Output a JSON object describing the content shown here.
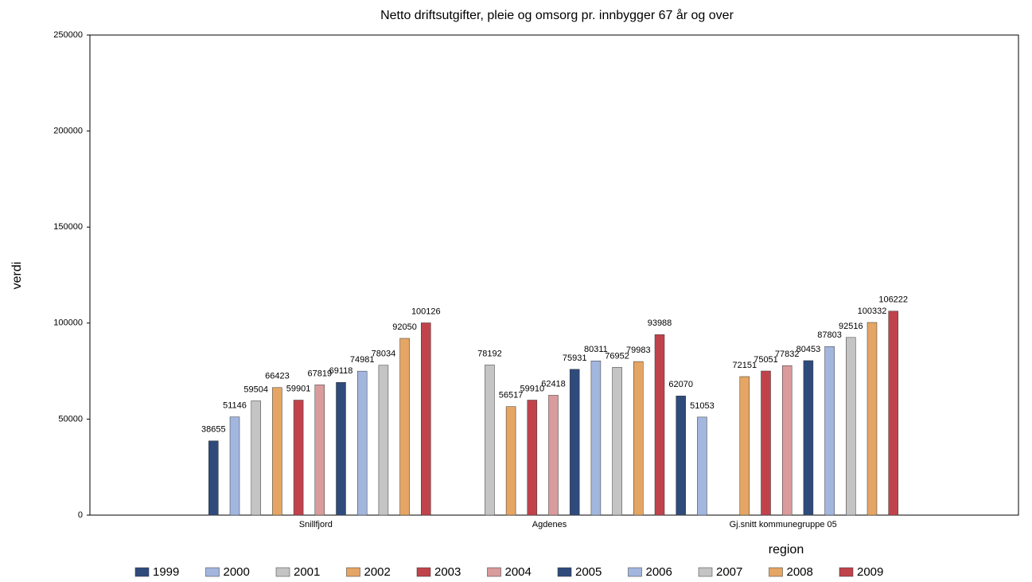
{
  "chart_data": {
    "type": "bar",
    "title": "Netto driftsutgifter, pleie og omsorg pr. innbygger 67 år og over",
    "xlabel": "region",
    "ylabel": "verdi",
    "categories": [
      "Snillfjord",
      "Agdenes",
      "Gj.snitt kommunegruppe 05"
    ],
    "series": [
      {
        "name": "1999",
        "color": "#2f4b7c",
        "values": [
          38655,
          null,
          62070
        ]
      },
      {
        "name": "2000",
        "color": "#a3b6de",
        "values": [
          51146,
          null,
          51053
        ]
      },
      {
        "name": "2001",
        "color": "#c4c4c4",
        "values": [
          59504,
          78192,
          null
        ]
      },
      {
        "name": "2002",
        "color": "#e5a564",
        "values": [
          66423,
          56517,
          72151
        ]
      },
      {
        "name": "2003",
        "color": "#c0434c",
        "values": [
          59901,
          59910,
          75051
        ]
      },
      {
        "name": "2004",
        "color": "#d99b9b",
        "values": [
          67819,
          62418,
          77832
        ]
      },
      {
        "name": "2005",
        "color": "#2f4b7c",
        "values": [
          69118,
          75931,
          80453
        ]
      },
      {
        "name": "2006",
        "color": "#a3b6de",
        "values": [
          74981,
          80311,
          87803
        ]
      },
      {
        "name": "2007",
        "color": "#c4c4c4",
        "values": [
          78034,
          76952,
          92516
        ]
      },
      {
        "name": "2008",
        "color": "#e5a564",
        "values": [
          92050,
          79983,
          100332
        ]
      },
      {
        "name": "2009",
        "color": "#c0434c",
        "values": [
          100126,
          93988,
          106222
        ]
      }
    ],
    "ylim": [
      0,
      250000
    ],
    "yticks": [
      0,
      50000,
      100000,
      150000,
      200000,
      250000
    ]
  }
}
